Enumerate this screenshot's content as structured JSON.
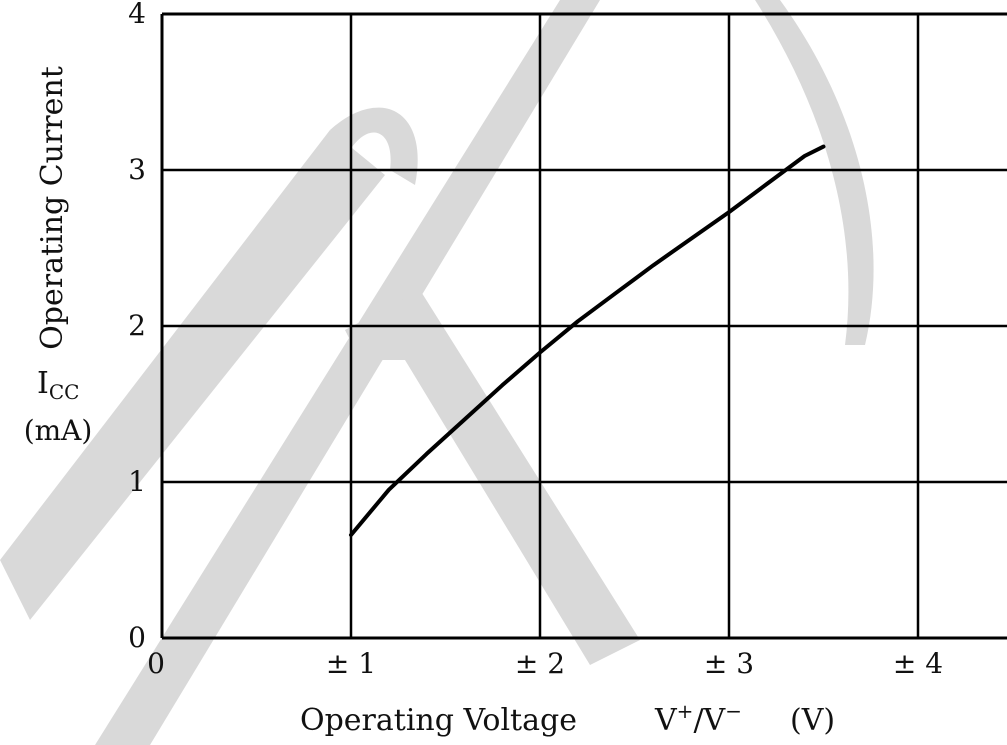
{
  "chart_data": {
    "type": "line",
    "xlabel_main": "Operating Voltage",
    "xlabel_unit_prefix": "V",
    "xlabel_sup1": "+",
    "xlabel_slash": "/V",
    "xlabel_sup2": "−",
    "xlabel_unit": "(V)",
    "ylabel_name": "Operating Current",
    "ylabel_symbol": "I",
    "ylabel_subscript": "CC",
    "ylabel_unit": "(mA)",
    "xlim": [
      0,
      4.5
    ],
    "ylim": [
      0,
      4
    ],
    "x_ticks": [
      {
        "value": 0,
        "label": "0"
      },
      {
        "value": 1,
        "label": "± 1"
      },
      {
        "value": 2,
        "label": "± 2"
      },
      {
        "value": 3,
        "label": "± 3"
      },
      {
        "value": 4,
        "label": "± 4"
      }
    ],
    "y_ticks": [
      {
        "value": 0,
        "label": "0"
      },
      {
        "value": 1,
        "label": "1"
      },
      {
        "value": 2,
        "label": "2"
      },
      {
        "value": 3,
        "label": "3"
      },
      {
        "value": 4,
        "label": "4"
      }
    ],
    "grid": true,
    "series": [
      {
        "x": [
          1.0,
          1.2,
          1.4,
          1.6,
          1.8,
          2.0,
          2.2,
          2.4,
          2.6,
          2.8,
          3.0,
          3.2,
          3.4,
          3.5
        ],
        "y": [
          0.66,
          0.95,
          1.18,
          1.4,
          1.62,
          1.83,
          2.03,
          2.21,
          2.39,
          2.56,
          2.73,
          2.91,
          3.09,
          3.15
        ]
      }
    ],
    "colors": {
      "line": "#000000",
      "grid": "#000000",
      "watermark": "#d9d9d9",
      "background": "#ffffff"
    }
  }
}
